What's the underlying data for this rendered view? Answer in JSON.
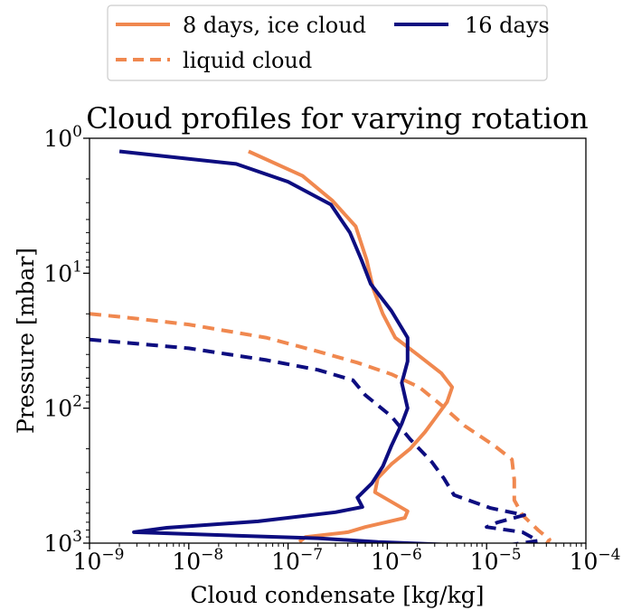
{
  "chart_data": {
    "type": "line",
    "title": "Cloud profiles for varying rotation",
    "xlabel": "Cloud condensate [kg/kg]",
    "ylabel": "Pressure [mbar]",
    "xscale": "log",
    "yscale": "log",
    "y_inverted": true,
    "xlim": [
      1e-09,
      0.0001
    ],
    "ylim": [
      1000,
      1
    ],
    "x_ticks": [
      {
        "value": 1e-09,
        "base": "10",
        "exp": "−9"
      },
      {
        "value": 1e-08,
        "base": "10",
        "exp": "−8"
      },
      {
        "value": 1e-07,
        "base": "10",
        "exp": "−7"
      },
      {
        "value": 1e-06,
        "base": "10",
        "exp": "−6"
      },
      {
        "value": 1e-05,
        "base": "10",
        "exp": "−5"
      },
      {
        "value": 0.0001,
        "base": "10",
        "exp": "−4"
      }
    ],
    "y_ticks": [
      {
        "value": 1,
        "base": "10",
        "exp": "0"
      },
      {
        "value": 10,
        "base": "10",
        "exp": "1"
      },
      {
        "value": 100,
        "base": "10",
        "exp": "2"
      },
      {
        "value": 1000,
        "base": "10",
        "exp": "3"
      }
    ],
    "legend": {
      "placement": "above plot, two columns",
      "entries": [
        {
          "label": "8 days, ice cloud",
          "color": "#F0884F",
          "dash": "solid"
        },
        {
          "label": "liquid cloud",
          "color": "#F0884F",
          "dash": "dashed"
        },
        {
          "label": "16 days",
          "color": "#0D0D80",
          "dash": "solid"
        }
      ]
    },
    "series": [
      {
        "id": "ice-8",
        "color": "#F0884F",
        "dash": "solid",
        "points": [
          [
            4e-08,
            1.25
          ],
          [
            1.4e-07,
            1.9
          ],
          [
            2.8e-07,
            2.9
          ],
          [
            4.8e-07,
            4.5
          ],
          [
            6.2e-07,
            8
          ],
          [
            7.2e-07,
            13
          ],
          [
            9e-07,
            20
          ],
          [
            1.2e-06,
            30
          ],
          [
            2e-06,
            40
          ],
          [
            3.5e-06,
            55
          ],
          [
            4.5e-06,
            70
          ],
          [
            4e-06,
            90
          ],
          [
            3e-06,
            120
          ],
          [
            2.4e-06,
            150
          ],
          [
            1.7e-06,
            200
          ],
          [
            1.1e-06,
            260
          ],
          [
            8e-07,
            330
          ],
          [
            7.5e-07,
            420
          ],
          [
            1.6e-06,
            580
          ],
          [
            1.5e-06,
            650
          ],
          [
            6e-07,
            760
          ],
          [
            4e-07,
            830
          ],
          [
            1.5e-07,
            900
          ],
          [
            1.3e-07,
            980
          ]
        ]
      },
      {
        "id": "ice-16",
        "color": "#0D0D80",
        "dash": "solid",
        "points": [
          [
            2e-09,
            1.25
          ],
          [
            3e-08,
            1.55
          ],
          [
            1e-07,
            2.1
          ],
          [
            2.7e-07,
            3.1
          ],
          [
            4.2e-07,
            5
          ],
          [
            5.5e-07,
            8
          ],
          [
            6.8e-07,
            12
          ],
          [
            1.1e-06,
            19
          ],
          [
            1.6e-06,
            30
          ],
          [
            1.6e-06,
            45
          ],
          [
            1.4e-06,
            65
          ],
          [
            1.6e-06,
            100
          ],
          [
            1.4e-06,
            130
          ],
          [
            1.1e-06,
            190
          ],
          [
            9e-07,
            270
          ],
          [
            7e-07,
            360
          ],
          [
            5e-07,
            460
          ],
          [
            5.6e-07,
            540
          ],
          [
            3e-07,
            590
          ],
          [
            5e-08,
            690
          ],
          [
            6e-09,
            770
          ],
          [
            2.8e-09,
            830
          ],
          [
            3e-08,
            880
          ],
          [
            2e-07,
            920
          ],
          [
            8e-07,
            980
          ],
          [
            9e-06,
            1050
          ]
        ]
      },
      {
        "id": "liquid-8",
        "color": "#F0884F",
        "dash": "dashed",
        "points": [
          [
            1e-09,
            20
          ],
          [
            2e-09,
            21
          ],
          [
            1e-08,
            24
          ],
          [
            6e-08,
            30
          ],
          [
            2e-07,
            38
          ],
          [
            5e-07,
            46
          ],
          [
            1.1e-06,
            56
          ],
          [
            2.1e-06,
            70
          ],
          [
            3.5e-06,
            95
          ],
          [
            6e-06,
            135
          ],
          [
            1.2e-05,
            190
          ],
          [
            1.8e-05,
            240
          ],
          [
            1.9e-05,
            340
          ],
          [
            1.9e-05,
            480
          ],
          [
            2.3e-05,
            620
          ],
          [
            3.3e-05,
            800
          ],
          [
            4.3e-05,
            940
          ],
          [
            3.8e-05,
            1070
          ]
        ]
      },
      {
        "id": "liquid-16",
        "color": "#0D0D80",
        "dash": "dashed",
        "points": [
          [
            1e-09,
            31
          ],
          [
            1e-08,
            36
          ],
          [
            6e-08,
            44
          ],
          [
            2e-07,
            52
          ],
          [
            4.5e-07,
            62
          ],
          [
            6e-07,
            80
          ],
          [
            1.1e-06,
            115
          ],
          [
            1.7e-06,
            170
          ],
          [
            2.8e-06,
            250
          ],
          [
            3.7e-06,
            330
          ],
          [
            4.7e-06,
            440
          ],
          [
            1.1e-05,
            550
          ],
          [
            2.4e-05,
            620
          ],
          [
            1.3e-05,
            700
          ],
          [
            1e-05,
            760
          ],
          [
            2.3e-05,
            830
          ],
          [
            3.3e-05,
            960
          ],
          [
            1.3e-05,
            1060
          ]
        ]
      }
    ],
    "grid": false
  }
}
